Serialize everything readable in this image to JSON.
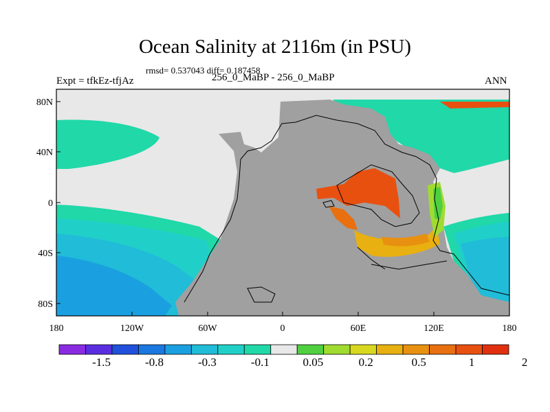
{
  "title": "Ocean Salinity at 2116m (in PSU)",
  "stats": "rmsd= 0.537043 diff= 0.187458",
  "experiment": "Expt = tfkEz-tfjAz",
  "subtitle": "256_0_MaBP - 256_0_MaBP",
  "season": "ANN",
  "axes": {
    "x_ticks": [
      "180",
      "120W",
      "60W",
      "0",
      "60E",
      "120E",
      "180"
    ],
    "y_ticks": [
      "80N",
      "40N",
      "0",
      "40S",
      "80S"
    ]
  },
  "colorbar": {
    "labels": [
      "-1.5",
      "-0.8",
      "-0.3",
      "-0.1",
      "0.05",
      "0.2",
      "0.5",
      "1",
      "2"
    ],
    "colors": [
      "#8a2be2",
      "#5a2ee0",
      "#2050dc",
      "#1a78e0",
      "#1aa0e0",
      "#20bcd8",
      "#20d0c8",
      "#20d8a8",
      "#e8e8e8",
      "#50d040",
      "#a0dc30",
      "#d8d820",
      "#e8b010",
      "#e89010",
      "#e87010",
      "#e85010",
      "#e03010"
    ]
  },
  "colors": {
    "land": "#a0a0a0",
    "near_zero": "#e8e8e8",
    "teal": "#20d8a8",
    "cyan": "#20d0c8",
    "sky": "#20bcd8",
    "blue": "#1aa0e0",
    "red": "#e85010",
    "orange": "#e89010",
    "amber": "#e8b010",
    "yellow_green": "#a0dc30",
    "green": "#50d040"
  }
}
